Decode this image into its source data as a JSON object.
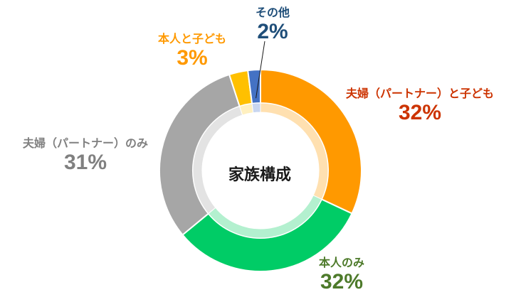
{
  "chart_data": {
    "type": "pie",
    "title": "家族構成",
    "slices": [
      {
        "label": "夫婦（パートナー）と子ども",
        "value": 32,
        "pct_text": "32%",
        "color": "#ff9900",
        "inner_color": "#ffe0b0",
        "label_color": "#cc3300",
        "pct_color": "#cc3300"
      },
      {
        "label": "本人のみ",
        "value": 32,
        "pct_text": "32%",
        "color": "#00cc66",
        "inner_color": "#b3f0cf",
        "label_color": "#4d7a2a",
        "pct_color": "#4d7a2a"
      },
      {
        "label": "夫婦（パートナー）のみ",
        "value": 31,
        "pct_text": "31%",
        "color": "#a6a6a6",
        "inner_color": "#e3e3e3",
        "label_color": "#808080",
        "pct_color": "#808080"
      },
      {
        "label": "本人と子ども",
        "value": 3,
        "pct_text": "3%",
        "color": "#ffc000",
        "inner_color": "#fff0c0",
        "label_color": "#ff9900",
        "pct_color": "#ff9900"
      },
      {
        "label": "その他",
        "value": 2,
        "pct_text": "2%",
        "color": "#4472c4",
        "inner_color": "#c8d6f0",
        "label_color": "#1f4e79",
        "pct_color": "#1f4e79"
      }
    ]
  }
}
